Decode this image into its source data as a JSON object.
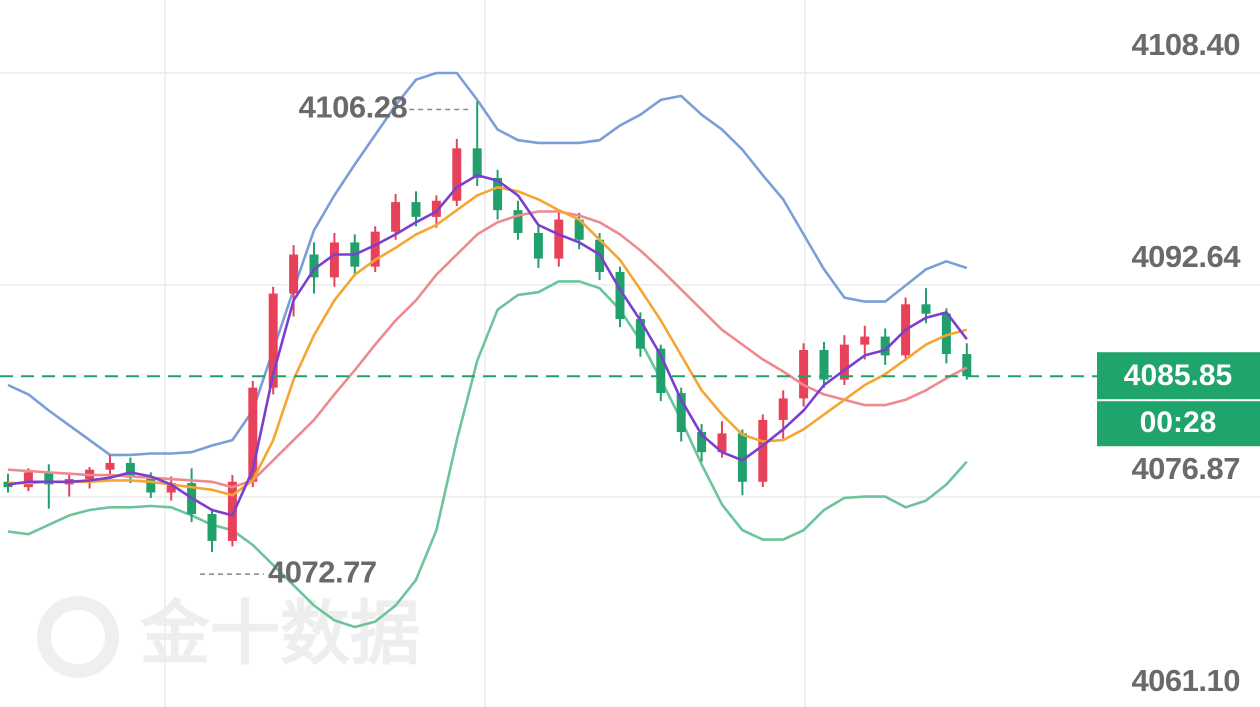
{
  "chart_data": {
    "type": "candlestick",
    "watermark": "金十数据",
    "countdown": "00:28",
    "ylim": [
      4061.25,
      4113.83
    ],
    "yticks": [
      {
        "value": 4108.4,
        "label": "4108.40"
      },
      4092.64,
      4076.87,
      {
        "value": 4061.1,
        "label": "4061.10"
      }
    ],
    "grid": true,
    "up_color": "#e8415a",
    "down_color": "#22a06b",
    "open": [
      4078.0,
      4077.6,
      4078.7,
      4077.8,
      4078.2,
      4078.9,
      4079.4,
      4078.3,
      4077.2,
      4077.9,
      4075.6,
      4073.6,
      4078.0,
      4085.0,
      4092.0,
      4094.9,
      4093.2,
      4095.8,
      4094.0,
      4096.6,
      4098.8,
      4097.7,
      4098.9,
      4102.8,
      4100.6,
      4098.2,
      4096.5,
      4094.6,
      4097.5,
      4096.0,
      4093.6,
      4090.1,
      4087.9,
      4084.6,
      4081.7,
      4080.2,
      4081.6,
      4078.0,
      4082.6,
      4084.2,
      4087.8,
      4085.6,
      4088.2,
      4088.8,
      4087.4,
      4091.2,
      4090.5,
      4087.5
    ],
    "high": [
      4078.6,
      4079.0,
      4079.3,
      4078.5,
      4079.1,
      4080.0,
      4079.8,
      4078.7,
      4078.4,
      4079.0,
      4076.0,
      4078.5,
      4085.5,
      4092.5,
      4095.6,
      4095.8,
      4096.5,
      4096.4,
      4097.0,
      4099.4,
      4099.6,
      4099.3,
      4103.5,
      4106.28,
      4101.2,
      4098.9,
      4097.2,
      4098.2,
      4098.0,
      4096.5,
      4094.0,
      4090.6,
      4088.2,
      4085.0,
      4082.3,
      4082.5,
      4081.9,
      4083.0,
      4084.8,
      4088.3,
      4088.4,
      4088.9,
      4089.6,
      4089.4,
      4091.7,
      4092.4,
      4090.9,
      4088.3
    ],
    "low": [
      4077.2,
      4077.3,
      4076.0,
      4076.9,
      4077.5,
      4078.3,
      4077.9,
      4076.8,
      4076.6,
      4075.0,
      4072.77,
      4073.2,
      4077.6,
      4084.5,
      4090.3,
      4092.0,
      4092.5,
      4093.3,
      4093.6,
      4096.0,
      4097.0,
      4096.9,
      4098.5,
      4100.0,
      4097.5,
      4096.0,
      4093.9,
      4094.0,
      4095.3,
      4093.0,
      4089.5,
      4087.3,
      4084.0,
      4081.0,
      4079.5,
      4079.8,
      4077.0,
      4077.6,
      4081.2,
      4083.6,
      4085.0,
      4085.2,
      4087.1,
      4086.7,
      4087.0,
      4089.8,
      4086.8,
      4085.6
    ],
    "close": [
      4077.6,
      4078.7,
      4077.8,
      4078.2,
      4078.9,
      4079.4,
      4078.3,
      4077.2,
      4077.9,
      4075.6,
      4073.6,
      4078.0,
      4085.0,
      4092.0,
      4094.9,
      4093.2,
      4095.8,
      4094.0,
      4096.6,
      4098.8,
      4097.7,
      4098.9,
      4102.8,
      4100.6,
      4098.2,
      4096.5,
      4094.6,
      4097.5,
      4096.0,
      4093.6,
      4090.1,
      4087.9,
      4084.6,
      4081.7,
      4080.2,
      4081.6,
      4078.0,
      4082.6,
      4084.2,
      4087.8,
      4085.6,
      4088.2,
      4088.8,
      4087.4,
      4091.2,
      4090.5,
      4087.5,
      4085.85
    ],
    "series": [
      {
        "color": "#7a9ed8",
        "values": [
          4085.2,
          4084.5,
          4083.3,
          4082.2,
          4081.1,
          4080.0,
          4080.0,
          4080.1,
          4080.1,
          4080.2,
          4080.7,
          4081.1,
          4083.3,
          4087.8,
          4092.3,
          4096.7,
          4099.3,
          4101.6,
          4103.8,
          4106.0,
          4107.9,
          4108.4,
          4108.4,
          4106.4,
          4104.2,
          4103.4,
          4103.2,
          4103.2,
          4103.2,
          4103.4,
          4104.5,
          4105.3,
          4106.4,
          4106.7,
          4105.3,
          4104.2,
          4102.7,
          4100.8,
          4099.0,
          4096.4,
          4093.8,
          4091.7,
          4091.4,
          4091.4,
          4092.6,
          4093.8,
          4094.4,
          4093.9
        ]
      },
      {
        "color": "#6cc49a",
        "values": [
          4074.3,
          4074.1,
          4074.8,
          4075.5,
          4075.9,
          4076.1,
          4076.1,
          4076.2,
          4076.1,
          4075.5,
          4074.8,
          4074.4,
          4073.3,
          4071.8,
          4070.3,
          4068.8,
          4067.7,
          4067.2,
          4067.6,
          4068.8,
          4070.7,
          4074.4,
          4081.1,
          4087.0,
          4090.8,
          4091.9,
          4092.1,
          4092.9,
          4092.9,
          4092.4,
          4090.8,
          4088.5,
          4085.6,
          4082.6,
          4079.3,
          4076.3,
          4074.4,
          4073.7,
          4073.7,
          4074.4,
          4075.9,
          4076.8,
          4076.9,
          4076.9,
          4076.1,
          4076.6,
          4077.8,
          4079.5
        ]
      },
      {
        "color": "#ee8a8f",
        "values": [
          4078.9,
          4078.8,
          4078.7,
          4078.6,
          4078.5,
          4078.5,
          4078.4,
          4078.3,
          4078.2,
          4078.1,
          4078.0,
          4077.6,
          4078.1,
          4079.6,
          4081.1,
          4082.6,
          4084.5,
          4086.3,
          4088.2,
          4090.0,
          4091.5,
          4093.4,
          4094.9,
          4096.4,
          4097.3,
          4097.8,
          4098.1,
          4098.1,
          4097.8,
          4097.3,
          4096.4,
          4095.2,
          4093.8,
          4092.3,
          4090.8,
          4089.3,
          4088.2,
          4087.1,
          4086.2,
          4085.2,
          4084.5,
          4084.1,
          4083.7,
          4083.7,
          4084.1,
          4084.8,
          4085.7,
          4086.5
        ]
      },
      {
        "color": "#f5a632",
        "values": [
          4077.9,
          4077.9,
          4078.0,
          4078.0,
          4078.0,
          4078.1,
          4078.1,
          4078.0,
          4077.8,
          4077.6,
          4077.4,
          4077.0,
          4078.1,
          4081.1,
          4085.6,
          4088.9,
          4091.5,
          4093.4,
          4094.5,
          4095.4,
          4096.4,
          4097.1,
          4098.2,
          4099.3,
          4099.9,
          4099.6,
          4099.0,
          4098.2,
          4097.5,
          4096.0,
          4094.5,
          4092.3,
          4090.0,
          4087.4,
          4084.8,
          4083.0,
          4081.5,
          4081.0,
          4081.1,
          4081.9,
          4083.0,
          4084.1,
          4085.2,
          4086.0,
          4087.1,
          4088.2,
          4088.9,
          4089.3
        ]
      },
      {
        "color": "#7b3fd0",
        "values": [
          4077.8,
          4078.0,
          4078.0,
          4078.0,
          4078.1,
          4078.3,
          4078.7,
          4078.4,
          4077.8,
          4076.8,
          4075.9,
          4075.5,
          4078.9,
          4086.0,
          4091.5,
          4093.8,
          4094.9,
          4094.9,
          4095.6,
          4096.4,
          4097.3,
          4098.1,
          4099.9,
          4100.8,
          4100.4,
          4099.3,
          4097.1,
          4096.4,
          4095.8,
          4094.9,
          4092.3,
          4090.0,
          4087.4,
          4084.1,
          4081.5,
          4080.2,
          4079.6,
          4080.7,
          4081.9,
          4083.3,
          4085.2,
          4086.3,
          4087.4,
          4087.8,
          4089.3,
          4090.2,
          4090.6,
          4088.6
        ]
      }
    ]
  }
}
